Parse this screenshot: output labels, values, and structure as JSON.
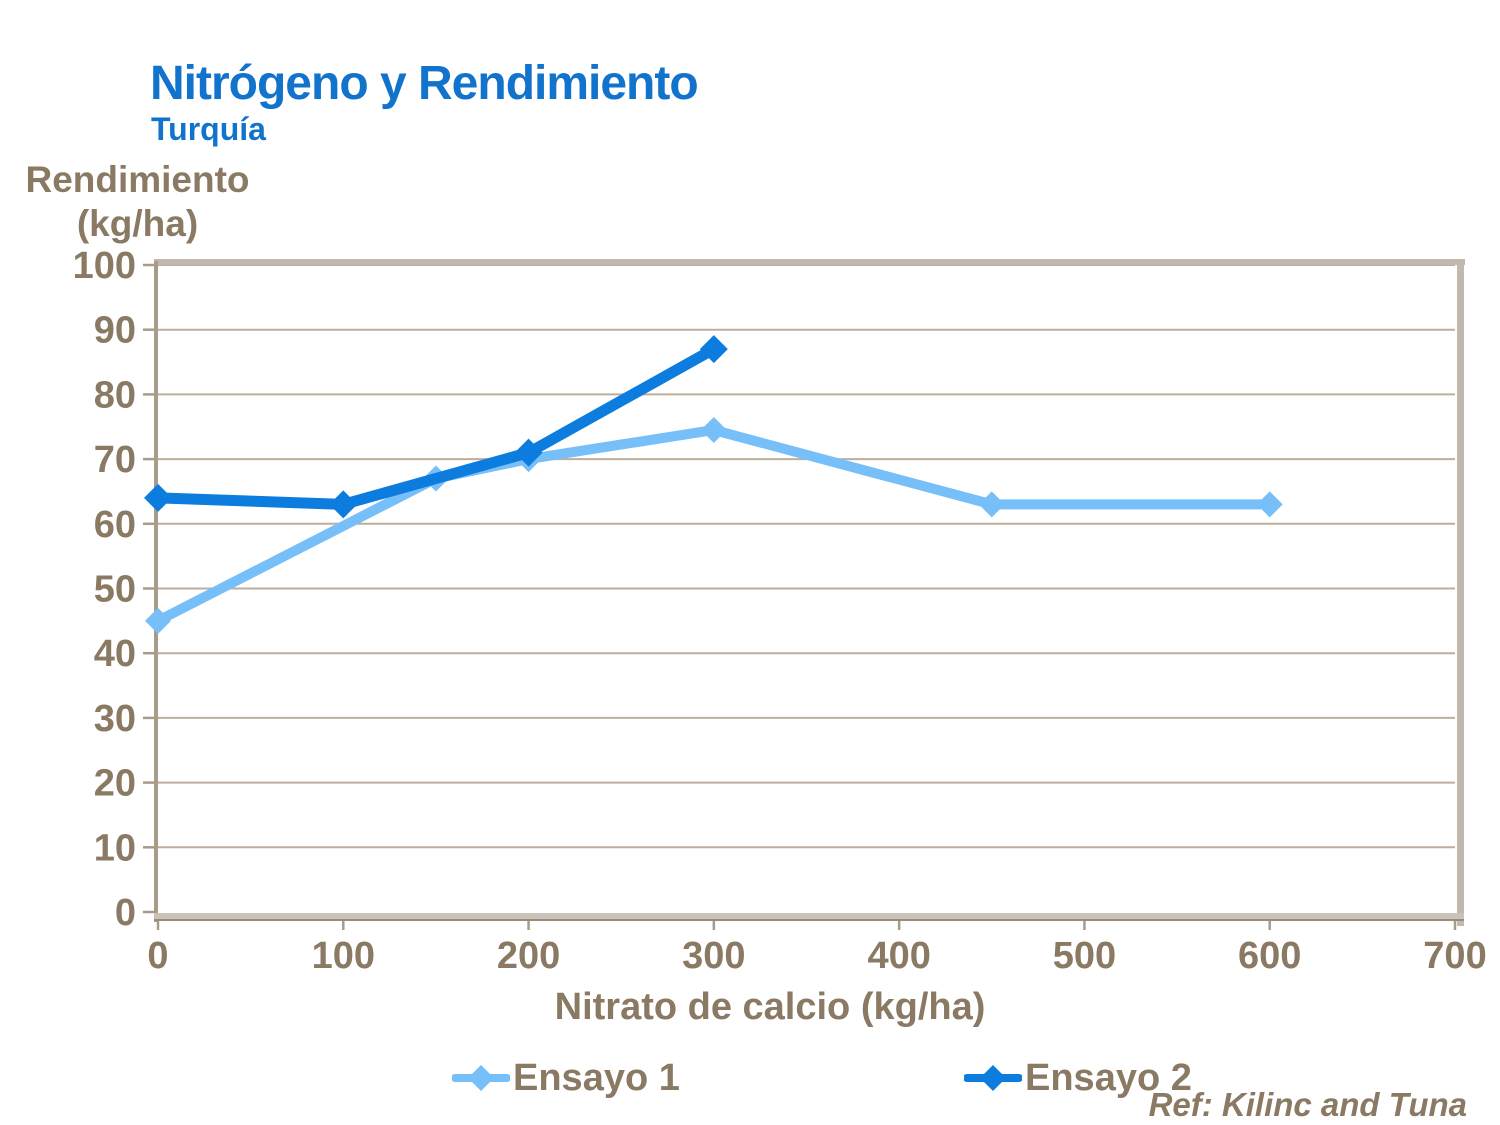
{
  "colors": {
    "title_blue": "#1273CC",
    "text_brown": "#8A7A63",
    "gridline": "#BDAE9C",
    "frame": "#C2B8AD",
    "axis_line": "#A89B8A",
    "axis_bottom": "#CBC3B9",
    "axis_bottom_edge": "#9A8C7B",
    "background": "#FFFFFF"
  },
  "chart_data": {
    "type": "line",
    "title": "Nitrógeno y Rendimiento",
    "subtitle": "Turquía",
    "ylabel": "Rendimiento (kg/ha)",
    "ylabel_lines": [
      "Rendimiento",
      "(kg/ha)"
    ],
    "xlabel": "Nitrato de calcio (kg/ha)",
    "xlim": [
      0,
      700
    ],
    "ylim": [
      0,
      100
    ],
    "xticks": [
      0,
      100,
      200,
      300,
      400,
      500,
      600,
      700
    ],
    "yticks": [
      0,
      10,
      20,
      30,
      40,
      50,
      60,
      70,
      80,
      90,
      100
    ],
    "grid": "horizontal",
    "legend_position": "bottom",
    "series": [
      {
        "name": "Ensayo 1",
        "color": "#76BFF9",
        "marker": "diamond",
        "points": [
          [
            0,
            45
          ],
          [
            150,
            67
          ],
          [
            200,
            70
          ],
          [
            300,
            74.5
          ],
          [
            450,
            63
          ],
          [
            600,
            63
          ]
        ]
      },
      {
        "name": "Ensayo 2",
        "color": "#0D7CDF",
        "marker": "diamond",
        "points": [
          [
            0,
            64
          ],
          [
            100,
            63
          ],
          [
            200,
            71
          ],
          [
            300,
            87
          ]
        ]
      }
    ],
    "ref": "Ref: Kilinc and Tuna"
  }
}
